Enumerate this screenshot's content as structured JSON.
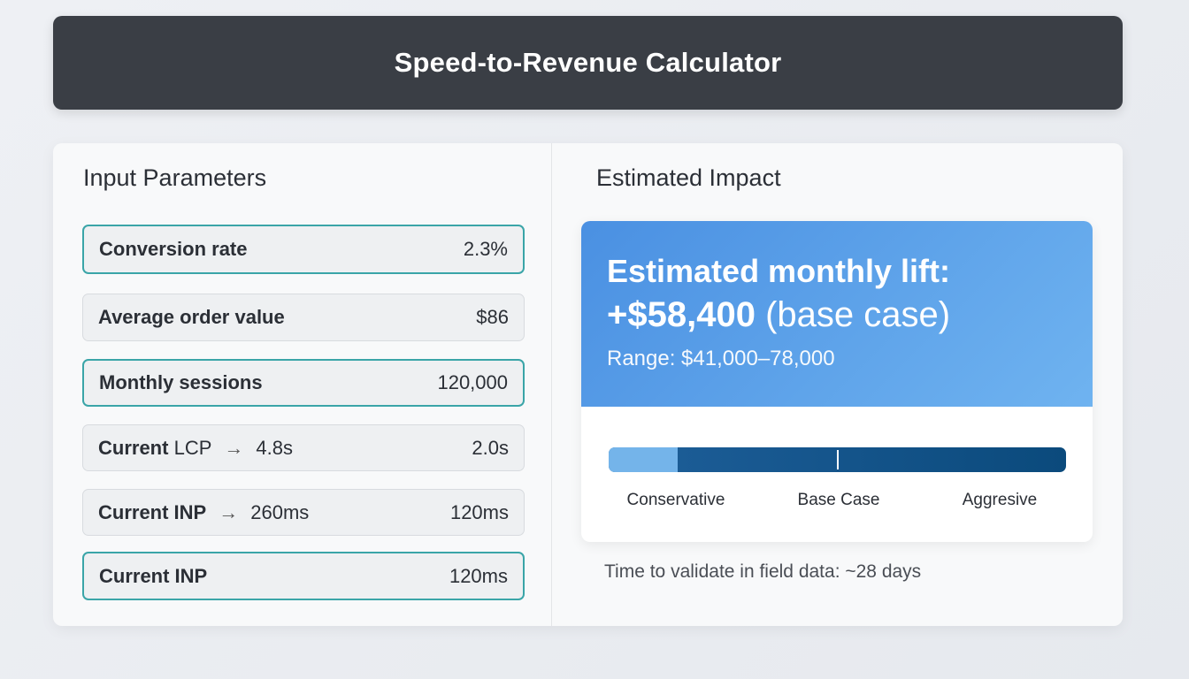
{
  "header": {
    "title": "Speed-to-Revenue Calculator"
  },
  "inputs": {
    "title": "Input Parameters",
    "params": [
      {
        "label": "Conversion rate",
        "value": "2.3%",
        "active": true
      },
      {
        "label": "Average order value",
        "value": "$86",
        "active": false
      },
      {
        "label": "Monthly sessions",
        "value": "120,000",
        "active": true
      },
      {
        "label_bold": "Current",
        "label_rest": "LCP",
        "arrow": "→",
        "previous": "4.8s",
        "value": "2.0s",
        "active": false
      },
      {
        "label": "Current INP",
        "arrow": "→",
        "previous": "260ms",
        "value": "120ms",
        "active": false
      },
      {
        "label": "Current INP",
        "value": "120ms",
        "active": true
      }
    ]
  },
  "impact": {
    "title": "Estimated Impact",
    "lift_label": "Estimated monthly lift:",
    "lift_amount": "+$58,400",
    "lift_case": "(base case)",
    "range": "Range: $41,000–78,000",
    "scale": {
      "conservative_label": "Conservative",
      "base_label": "Base Case",
      "aggressive_label": "Aggresive",
      "conservative_fraction": 0.15,
      "base_fraction": 0.5
    },
    "validate_text": "Time to validate in field data: ~28 days"
  },
  "colors": {
    "accent_border": "#3aa5a8",
    "banner_start": "#4a90e2",
    "banner_end": "#6fb3f0",
    "bar_dark": "#0b4a7c",
    "bar_light": "#74b4ea"
  }
}
